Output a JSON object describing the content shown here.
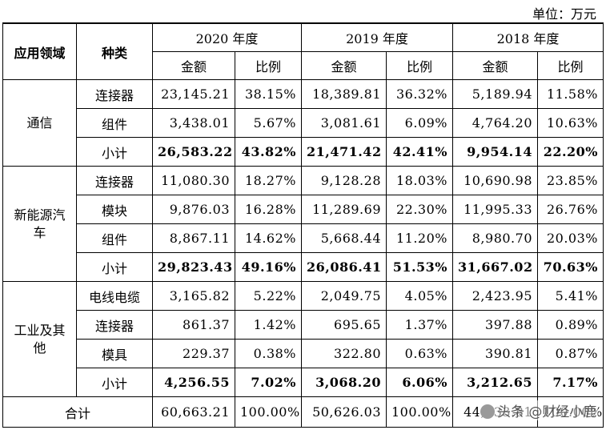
{
  "unit_label": "单位：万元",
  "header": {
    "field": "应用领域",
    "type": "种类",
    "years": [
      "2020 年度",
      "2019 年度",
      "2018 年度"
    ],
    "amount": "金额",
    "ratio": "比例"
  },
  "groups": [
    {
      "field": "通信",
      "rows": [
        {
          "type": "连接器",
          "v": [
            "23,145.21",
            "38.15%",
            "18,389.81",
            "36.32%",
            "5,189.94",
            "11.58%"
          ]
        },
        {
          "type": "组件",
          "v": [
            "3,438.01",
            "5.67%",
            "3,081.61",
            "6.09%",
            "4,764.20",
            "10.63%"
          ]
        },
        {
          "type": "小计",
          "v": [
            "26,583.22",
            "43.82%",
            "21,471.42",
            "42.41%",
            "9,954.14",
            "22.20%"
          ]
        }
      ]
    },
    {
      "field": "新能源汽车",
      "rows": [
        {
          "type": "连接器",
          "v": [
            "11,080.30",
            "18.27%",
            "9,128.28",
            "18.03%",
            "10,690.98",
            "23.85%"
          ]
        },
        {
          "type": "模块",
          "v": [
            "9,876.03",
            "16.28%",
            "11,289.69",
            "22.30%",
            "11,995.33",
            "26.76%"
          ]
        },
        {
          "type": "组件",
          "v": [
            "8,867.11",
            "14.62%",
            "5,668.44",
            "11.20%",
            "8,980.70",
            "20.03%"
          ]
        },
        {
          "type": "小计",
          "v": [
            "29,823.43",
            "49.16%",
            "26,086.41",
            "51.53%",
            "31,667.02",
            "70.63%"
          ]
        }
      ]
    },
    {
      "field": "工业及其他",
      "rows": [
        {
          "type": "电线电缆",
          "v": [
            "3,165.82",
            "5.22%",
            "2,049.75",
            "4.05%",
            "2,423.95",
            "5.41%"
          ]
        },
        {
          "type": "连接器",
          "v": [
            "861.37",
            "1.42%",
            "695.65",
            "1.37%",
            "397.88",
            "0.89%"
          ]
        },
        {
          "type": "模具",
          "v": [
            "229.37",
            "0.38%",
            "322.80",
            "0.63%",
            "390.81",
            "0.87%"
          ]
        },
        {
          "type": "小计",
          "v": [
            "4,256.55",
            "7.02%",
            "3,068.20",
            "6.06%",
            "3,212.65",
            "7.17%"
          ]
        }
      ]
    }
  ],
  "total": {
    "label": "合计",
    "v": [
      "60,663.21",
      "100.00%",
      "50,626.03",
      "100.00%",
      "44,833.81",
      "100.00%"
    ]
  },
  "watermark": "头条 @财经小鹿"
}
